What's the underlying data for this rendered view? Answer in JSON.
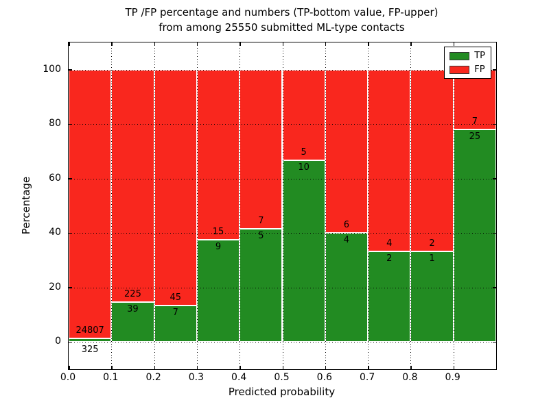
{
  "title": {
    "line1": "TP /FP percentage and numbers (TP-bottom value, FP-upper)",
    "line2": "from among 25550 submitted ML-type contacts"
  },
  "y_axis": {
    "label": "Percentage",
    "ticks": [
      0,
      20,
      40,
      60,
      80,
      100
    ]
  },
  "x_axis": {
    "label": "Predicted probability",
    "ticks": [
      "0.0",
      "0.1",
      "0.2",
      "0.3",
      "0.4",
      "0.5",
      "0.6",
      "0.7",
      "0.8",
      "0.9"
    ]
  },
  "legend": {
    "items": [
      {
        "label": "TP",
        "color": "#228b22"
      },
      {
        "label": "FP",
        "color": "#f9271e"
      }
    ]
  },
  "chart_data": {
    "type": "bar",
    "stacked": true,
    "percent_normalized": true,
    "title": "TP /FP percentage and numbers (TP-bottom value, FP-upper) from among 25550 submitted ML-type contacts",
    "xlabel": "Predicted probability",
    "ylabel": "Percentage",
    "categories": [
      "0.0-0.1",
      "0.1-0.2",
      "0.2-0.3",
      "0.3-0.4",
      "0.4-0.5",
      "0.5-0.6",
      "0.6-0.7",
      "0.7-0.8",
      "0.8-0.9",
      "0.9-1.0"
    ],
    "series": [
      {
        "name": "TP",
        "color": "#228b22",
        "counts": [
          325,
          39,
          7,
          9,
          5,
          10,
          4,
          2,
          1,
          25
        ]
      },
      {
        "name": "FP",
        "color": "#f9271e",
        "counts": [
          24807,
          225,
          45,
          15,
          7,
          5,
          6,
          4,
          2,
          7
        ]
      }
    ],
    "tp_percent": [
      1.29,
      14.77,
      13.46,
      37.5,
      41.67,
      66.67,
      40.0,
      33.33,
      33.33,
      78.13
    ],
    "total_contacts": 25550,
    "ylim": [
      -10,
      110
    ],
    "xlim": [
      0.0,
      1.0
    ],
    "grid": "dotted",
    "legend_position": "upper right"
  }
}
